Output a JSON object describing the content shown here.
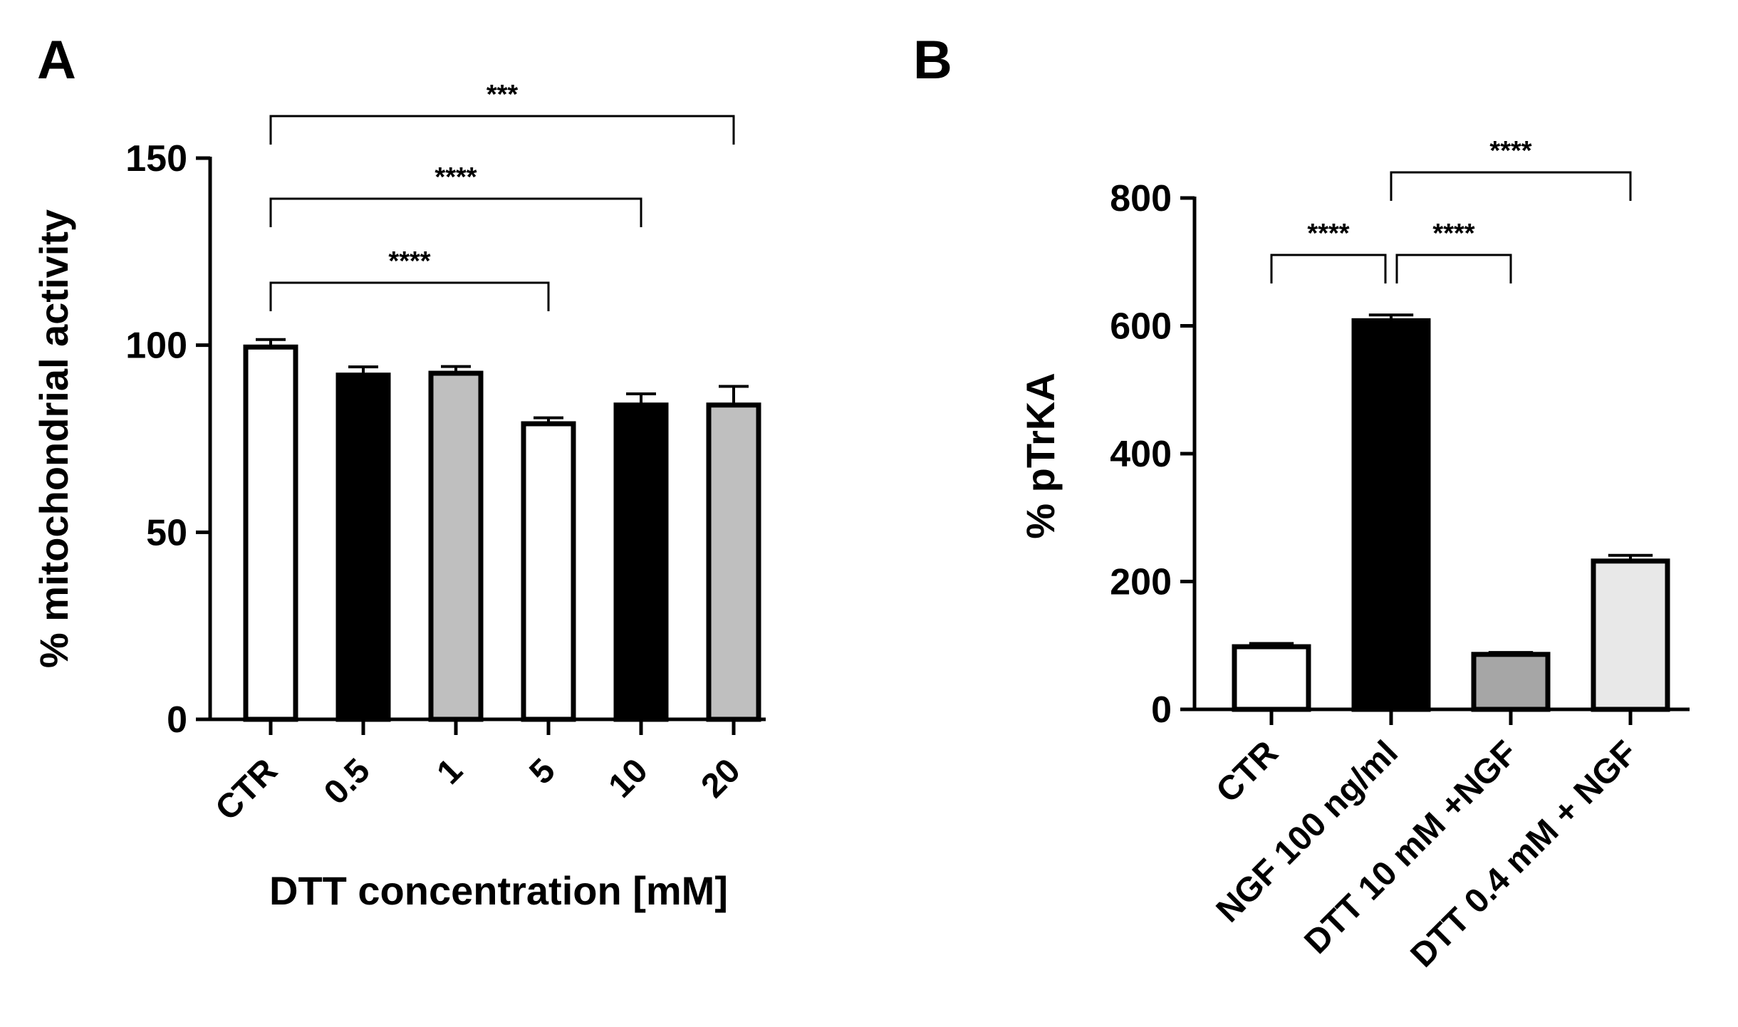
{
  "chart_data": [
    {
      "panel": "A",
      "type": "bar",
      "xlabel": "DTT concentration [mM]",
      "ylabel": "% mitochondrial activity",
      "ylim": [
        0,
        150
      ],
      "yticks": [
        0,
        50,
        100,
        150
      ],
      "categories": [
        "CTR",
        "0.5",
        "1",
        "5",
        "10",
        "20"
      ],
      "values": [
        99.5,
        92,
        92.5,
        79,
        84,
        84
      ],
      "errors": [
        2,
        2.2,
        1.8,
        1.6,
        3,
        5
      ],
      "bar_colors": [
        "#ffffff",
        "#000000",
        "#bfbfbf",
        "#ffffff",
        "#000000",
        "#bfbfbf"
      ],
      "significance": [
        {
          "from": 0,
          "to": 3,
          "label": "****"
        },
        {
          "from": 0,
          "to": 4,
          "label": "****"
        },
        {
          "from": 0,
          "to": 5,
          "label": "***"
        }
      ]
    },
    {
      "panel": "B",
      "type": "bar",
      "xlabel": "",
      "ylabel": "% pTrKA",
      "ylim": [
        0,
        800
      ],
      "yticks": [
        0,
        200,
        400,
        600,
        800
      ],
      "categories": [
        "CTR",
        "NGF 100 ng/ml",
        "DTT 10 mM +NGF",
        "DTT 0.4 mM + NGF"
      ],
      "values": [
        98,
        608,
        86,
        232
      ],
      "errors": [
        5,
        9,
        3,
        9
      ],
      "bar_colors": [
        "#ffffff",
        "#000000",
        "#a6a6a6",
        "#e8e8e8"
      ],
      "significance": [
        {
          "from": 0,
          "to": 1,
          "label": "****"
        },
        {
          "from": 1,
          "to": 2,
          "label": "****"
        },
        {
          "from": 1,
          "to": 3,
          "label": "****"
        }
      ]
    }
  ]
}
